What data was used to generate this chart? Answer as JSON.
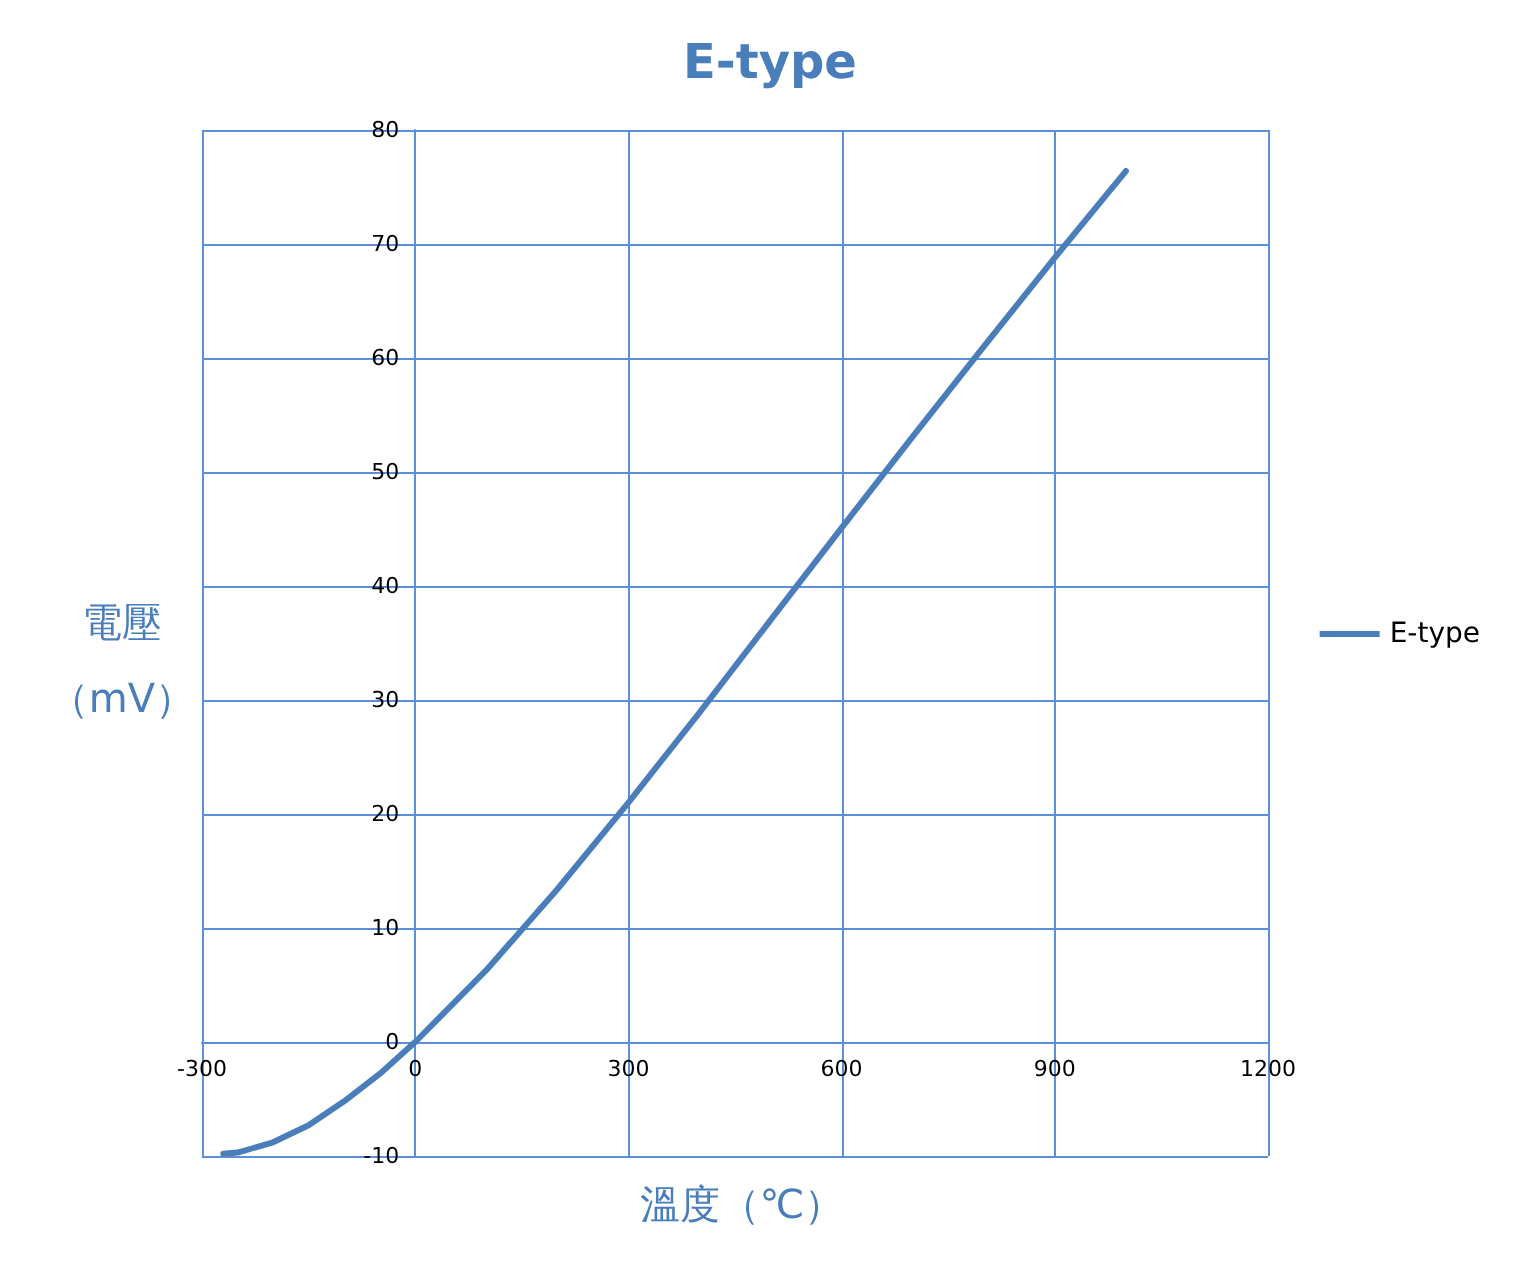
{
  "chart_data": {
    "type": "line",
    "title": "E-type",
    "xlabel": "溫度（℃）",
    "ylabel": "電壓（mV）",
    "series": [
      {
        "name": "E-type",
        "color": "#4a7ebb",
        "x": [
          -270,
          -250,
          -200,
          -150,
          -100,
          -50,
          0,
          100,
          200,
          300,
          400,
          500,
          600,
          700,
          800,
          900,
          1000
        ],
        "values": [
          -9.8,
          -9.7,
          -8.8,
          -7.3,
          -5.2,
          -2.8,
          0,
          6.3,
          13.4,
          21.0,
          28.9,
          37.0,
          45.1,
          53.1,
          61.0,
          68.8,
          76.4
        ]
      }
    ],
    "xlim": [
      -300,
      1200
    ],
    "xticks": [
      -300,
      0,
      300,
      600,
      900,
      1200
    ],
    "ylim": [
      -10,
      80
    ],
    "yticks": [
      -10,
      0,
      10,
      20,
      30,
      40,
      50,
      60,
      70,
      80
    ],
    "grid": true,
    "legend": "right",
    "marker": "none",
    "line_style": "solid"
  }
}
